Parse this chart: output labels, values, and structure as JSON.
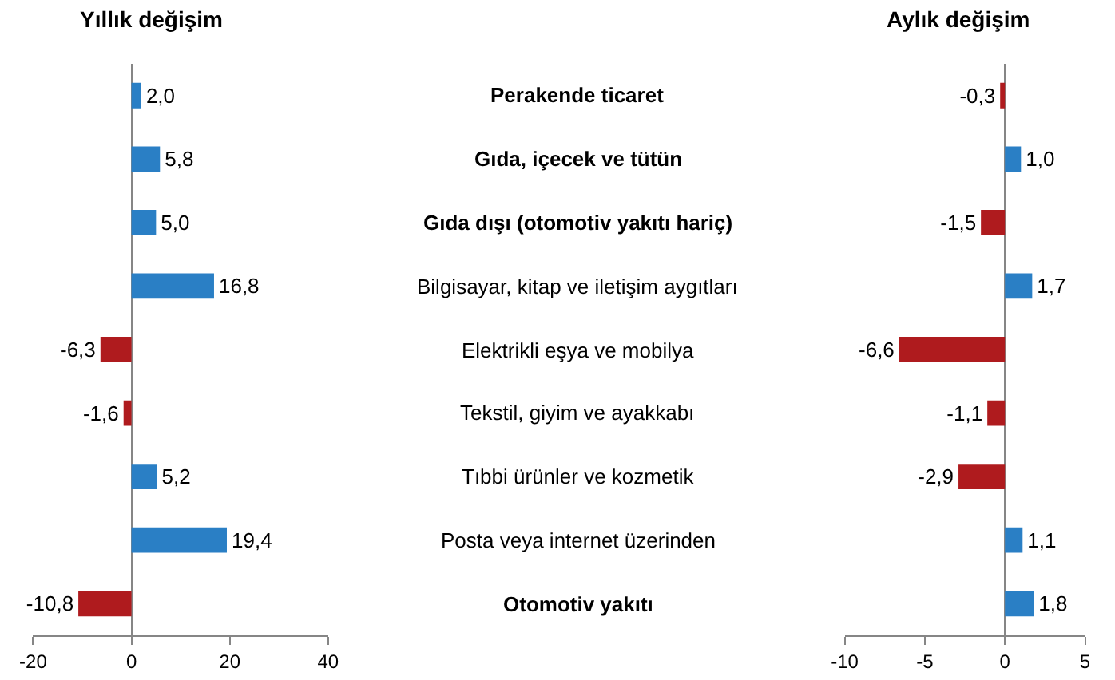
{
  "chart_data": [
    {
      "type": "bar",
      "orientation": "horizontal",
      "title": "Yıllık değişim",
      "categories": [
        "Perakende ticaret",
        "Gıda, içecek ve tütün",
        "Gıda dışı (otomotiv yakıtı hariç)",
        "Bilgisayar, kitap ve iletişim aygıtları",
        "Elektrikli eşya ve mobilya",
        "Tekstil, giyim ve ayakkabı",
        "Tıbbi ürünler ve kozmetik",
        "Posta veya internet üzerinden",
        "Otomotiv yakıtı"
      ],
      "values": [
        2.0,
        5.8,
        5.0,
        16.8,
        -6.3,
        -1.6,
        5.2,
        19.4,
        -10.8
      ],
      "colors": [
        "#2a7fc5",
        "#2a7fc5",
        "#2a7fc5",
        "#2a7fc5",
        "#af1b1e",
        "#af1b1e",
        "#2a7fc5",
        "#2a7fc5",
        "#af1b1e"
      ],
      "value_labels": [
        "2,0",
        "5,8",
        "5,0",
        "16,8",
        "-6,3",
        "-1,6",
        "5,2",
        "19,4",
        "-10,8"
      ],
      "xlim": [
        -20,
        40
      ],
      "xticks": [
        -20,
        0,
        20,
        40
      ],
      "tick_labels": "x"
    },
    {
      "type": "bar",
      "orientation": "horizontal",
      "title": "Aylık değişim",
      "categories": [
        "Perakende ticaret",
        "Gıda, içecek ve tütün",
        "Gıda dışı (otomotiv yakıtı hariç)",
        "Bilgisayar, kitap ve iletişim aygıtları",
        "Elektrikli eşya ve mobilya",
        "Tekstil, giyim ve ayakkabı",
        "Tıbbi ürünler ve kozmetik",
        "Posta veya internet üzerinden",
        "Otomotiv yakıtı"
      ],
      "values": [
        -0.3,
        1.0,
        -1.5,
        1.7,
        -6.6,
        -1.1,
        -2.9,
        1.1,
        1.8
      ],
      "colors": [
        "#af1b1e",
        "#2a7fc5",
        "#af1b1e",
        "#2a7fc5",
        "#af1b1e",
        "#af1b1e",
        "#af1b1e",
        "#2a7fc5",
        "#2a7fc5"
      ],
      "value_labels": [
        "-0,3",
        "1,0",
        "-1,5",
        "1,7",
        "-6,6",
        "-1,1",
        "-2,9",
        "1,1",
        "1,8"
      ],
      "xlim": [
        -10,
        5
      ],
      "xticks": [
        -10,
        -5,
        0,
        5
      ]
    }
  ]
}
